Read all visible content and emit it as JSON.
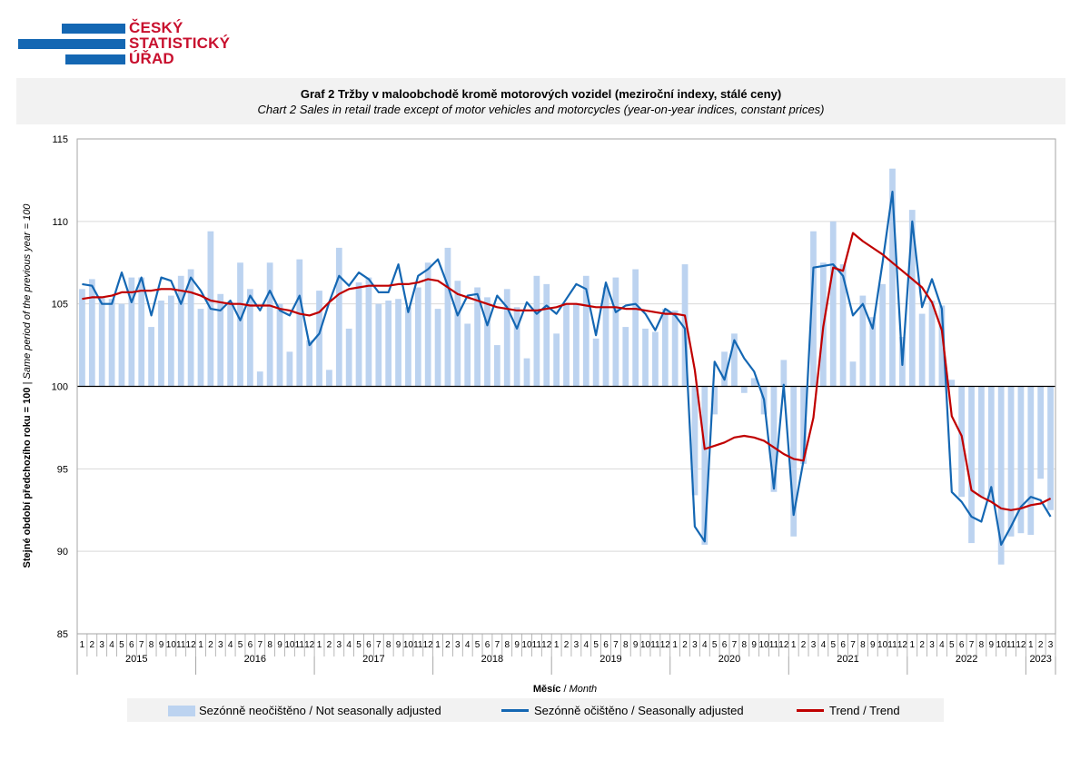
{
  "logo": {
    "line1": "ČESKÝ",
    "line2": "STATISTICKÝ",
    "line3": "ÚŘAD"
  },
  "colors": {
    "bars": "#bcd3f0",
    "seasonal": "#1467b3",
    "trend": "#c00000",
    "logo_blue": "#1467b3",
    "logo_red": "#c8102e"
  },
  "chart_data": {
    "type": "bar",
    "title": "Graf 2 Tržby v maloobchodě kromě motorových vozidel (meziroční indexy, stálé ceny)",
    "subtitle": "Chart 2 Sales in retail trade except of motor vehicles and motorcycles (year-on-year indices, constant prices)",
    "ylabel_cz": "Stejné období předchozího roku = 100",
    "ylabel_en": "Same period of the previous year = 100",
    "xlabel_cz": "Měsíc",
    "xlabel_en": "Month",
    "ylim": [
      85,
      115
    ],
    "y_ticks": [
      85,
      90,
      95,
      100,
      105,
      110,
      115
    ],
    "baseline": 100,
    "grid": true,
    "legend_position": "bottom",
    "years": [
      "2015",
      "2016",
      "2017",
      "2018",
      "2019",
      "2020",
      "2021",
      "2022",
      "2023"
    ],
    "months_per_year": [
      12,
      12,
      12,
      12,
      12,
      12,
      12,
      12,
      3
    ],
    "series": [
      {
        "name": "Sezónně neočištěno / Not seasonally adjusted",
        "kind": "bar",
        "values": [
          105.9,
          106.5,
          105.4,
          105.3,
          105.0,
          106.6,
          106.6,
          103.6,
          105.2,
          105.5,
          106.7,
          107.1,
          104.7,
          109.4,
          105.6,
          105.1,
          107.5,
          105.9,
          100.9,
          107.5,
          105.0,
          102.1,
          107.7,
          102.8,
          105.8,
          101.0,
          108.4,
          103.5,
          106.3,
          106.6,
          105.0,
          105.2,
          105.3,
          104.8,
          106.0,
          107.5,
          104.7,
          108.4,
          106.4,
          103.8,
          106.0,
          105.4,
          102.5,
          105.9,
          104.8,
          101.7,
          106.7,
          106.2,
          103.2,
          105.0,
          105.0,
          106.7,
          102.9,
          106.0,
          106.6,
          103.6,
          107.1,
          103.5,
          103.3,
          104.7,
          104.6,
          107.4,
          93.4,
          90.4,
          98.3,
          102.1,
          103.2,
          99.6,
          100.5,
          98.3,
          93.6,
          101.6,
          90.9,
          95.3,
          109.4,
          107.5,
          110.0,
          107.4,
          101.5,
          105.5,
          104.2,
          106.2,
          113.2,
          103.0,
          110.7,
          104.4,
          105.2,
          104.9,
          100.4,
          93.3,
          90.5,
          93.3,
          93.0,
          89.2,
          90.9,
          91.1,
          91.0,
          94.4,
          92.5
        ]
      },
      {
        "name": "Sezónně očištěno / Seasonally adjusted",
        "kind": "line",
        "values": [
          106.2,
          106.1,
          105.0,
          105.0,
          106.9,
          105.1,
          106.6,
          104.3,
          106.6,
          106.4,
          105.0,
          106.6,
          105.8,
          104.7,
          104.6,
          105.2,
          104.0,
          105.5,
          104.6,
          105.8,
          104.6,
          104.3,
          105.5,
          102.5,
          103.2,
          105.1,
          106.7,
          106.1,
          106.9,
          106.5,
          105.7,
          105.7,
          107.4,
          104.5,
          106.7,
          107.1,
          107.7,
          106.1,
          104.3,
          105.5,
          105.6,
          103.7,
          105.5,
          104.8,
          103.5,
          105.1,
          104.4,
          104.9,
          104.4,
          105.3,
          106.2,
          105.9,
          103.1,
          106.3,
          104.5,
          104.9,
          105.0,
          104.4,
          103.4,
          104.7,
          104.3,
          103.5,
          91.5,
          90.6,
          101.5,
          100.4,
          102.8,
          101.7,
          100.9,
          99.2,
          93.8,
          100.1,
          92.2,
          95.5,
          107.2,
          107.3,
          107.4,
          106.7,
          104.3,
          105.0,
          103.5,
          107.5,
          111.8,
          101.3,
          110.0,
          104.8,
          106.5,
          104.7,
          93.6,
          93.0,
          92.1,
          91.8,
          93.9,
          90.4,
          91.5,
          92.7,
          93.3,
          93.1,
          92.1
        ]
      },
      {
        "name": "Trend / Trend",
        "kind": "line",
        "values": [
          105.3,
          105.4,
          105.4,
          105.5,
          105.7,
          105.7,
          105.8,
          105.8,
          105.9,
          105.9,
          105.8,
          105.7,
          105.5,
          105.2,
          105.1,
          105.0,
          105.0,
          104.9,
          104.9,
          104.9,
          104.7,
          104.6,
          104.4,
          104.3,
          104.5,
          105.1,
          105.6,
          105.9,
          106.0,
          106.1,
          106.1,
          106.1,
          106.2,
          106.2,
          106.3,
          106.5,
          106.4,
          106.0,
          105.6,
          105.4,
          105.2,
          105.0,
          104.8,
          104.7,
          104.6,
          104.6,
          104.6,
          104.7,
          104.8,
          105.0,
          105.0,
          104.9,
          104.8,
          104.8,
          104.8,
          104.7,
          104.7,
          104.6,
          104.5,
          104.4,
          104.4,
          104.3,
          101.0,
          96.2,
          96.4,
          96.6,
          96.9,
          97.0,
          96.9,
          96.7,
          96.3,
          95.9,
          95.6,
          95.5,
          98.1,
          103.6,
          107.2,
          107.0,
          109.3,
          108.8,
          108.4,
          108.0,
          107.5,
          107.0,
          106.5,
          106.0,
          105.1,
          103.4,
          98.2,
          97.0,
          93.7,
          93.3,
          93.0,
          92.6,
          92.5,
          92.6,
          92.8,
          92.9,
          93.2
        ]
      }
    ]
  }
}
